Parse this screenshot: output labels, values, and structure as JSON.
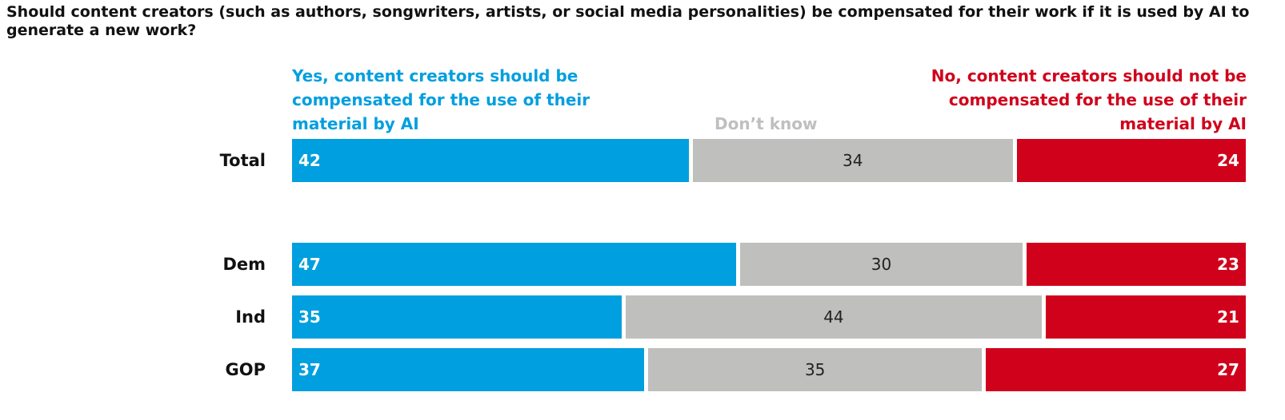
{
  "chart_data": {
    "type": "bar",
    "stacked": true,
    "orientation": "horizontal",
    "title": "Should content creators (such as authors, songwriters, artists, or social media personalities) be compensated for their work if it is used by AI to generate a new work?",
    "categories": [
      "Total",
      "Dem",
      "Ind",
      "GOP"
    ],
    "series": [
      {
        "name": "Yes, content creators should be compensated for the use of their material by AI",
        "color": "#009fdf",
        "values": [
          42,
          47,
          35,
          37
        ]
      },
      {
        "name": "Don’t know",
        "color": "#bfbfbe",
        "values": [
          34,
          30,
          44,
          35
        ]
      },
      {
        "name": "No, content creators should not be compensated for the use of their material by AI",
        "color": "#d0021b",
        "values": [
          24,
          23,
          21,
          27
        ]
      }
    ]
  }
}
